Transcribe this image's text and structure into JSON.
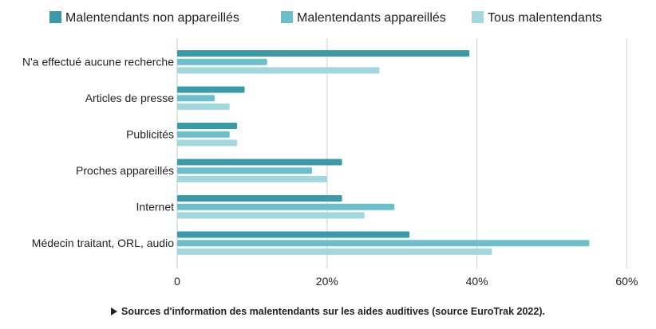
{
  "chart_data": {
    "type": "bar",
    "orientation": "horizontal",
    "title": "",
    "xlabel": "",
    "ylabel": "",
    "xlim": [
      0,
      60
    ],
    "x_ticks": [
      0,
      20,
      40,
      60
    ],
    "x_tick_labels": [
      "0",
      "20%",
      "40%",
      "60%"
    ],
    "grid": true,
    "legend_position": "top",
    "categories": [
      "N'a effectué aucune recherche",
      "Articles de presse",
      "Publicités",
      "Proches appareillés",
      "Internet",
      "Médecin traitant, ORL, audio"
    ],
    "series": [
      {
        "name": "Malentendants non appareillés",
        "color": "#3a9aa7",
        "values": [
          39,
          9,
          8,
          22,
          22,
          31
        ]
      },
      {
        "name": "Malentendants appareillés",
        "color": "#6bbfcb",
        "values": [
          12,
          5,
          7,
          18,
          29,
          55
        ]
      },
      {
        "name": "Tous malentendants",
        "color": "#a2d7de",
        "values": [
          27,
          7,
          8,
          20,
          25,
          42
        ]
      }
    ],
    "caption": "Sources d'information des malentendants sur les aides auditives (source EuroTrak 2022)."
  }
}
